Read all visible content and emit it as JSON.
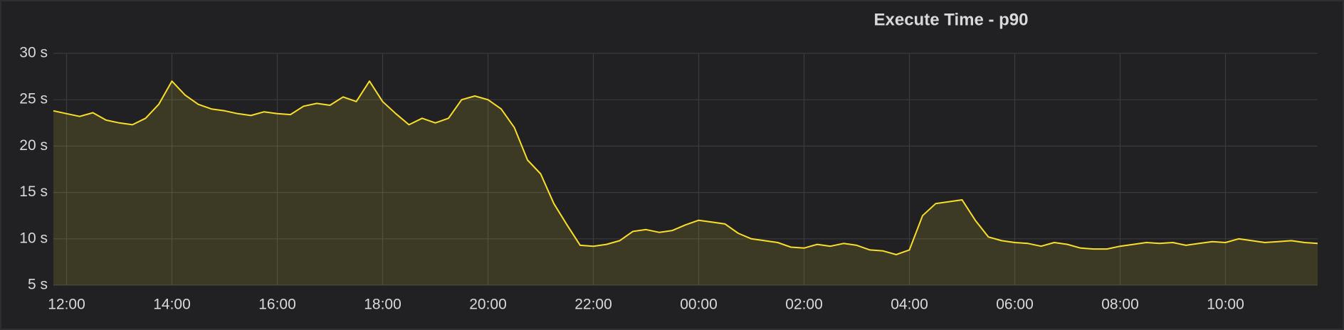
{
  "chart_data": {
    "type": "area",
    "title": "Execute Time - p90",
    "x": [
      "11:45",
      "12:00",
      "12:15",
      "12:30",
      "12:45",
      "13:00",
      "13:15",
      "13:30",
      "13:45",
      "14:00",
      "14:15",
      "14:30",
      "14:45",
      "15:00",
      "15:15",
      "15:30",
      "15:45",
      "16:00",
      "16:15",
      "16:30",
      "16:45",
      "17:00",
      "17:15",
      "17:30",
      "17:45",
      "18:00",
      "18:15",
      "18:30",
      "18:45",
      "19:00",
      "19:15",
      "19:30",
      "19:45",
      "20:00",
      "20:15",
      "20:30",
      "20:45",
      "21:00",
      "21:15",
      "21:30",
      "21:45",
      "22:00",
      "22:15",
      "22:30",
      "22:45",
      "23:00",
      "23:15",
      "23:30",
      "23:45",
      "00:00",
      "00:15",
      "00:30",
      "00:45",
      "01:00",
      "01:15",
      "01:30",
      "01:45",
      "02:00",
      "02:15",
      "02:30",
      "02:45",
      "03:00",
      "03:15",
      "03:30",
      "03:45",
      "04:00",
      "04:15",
      "04:30",
      "04:45",
      "05:00",
      "05:15",
      "05:30",
      "05:45",
      "06:00",
      "06:15",
      "06:30",
      "06:45",
      "07:00",
      "07:15",
      "07:30",
      "07:45",
      "08:00",
      "08:15",
      "08:30",
      "08:45",
      "09:00",
      "09:15",
      "09:30",
      "09:45",
      "10:00",
      "10:15",
      "10:30",
      "10:45",
      "11:00",
      "11:15",
      "11:30",
      "11:45"
    ],
    "values": [
      23.8,
      23.5,
      23.2,
      23.6,
      22.8,
      22.5,
      22.3,
      23.0,
      24.5,
      27.0,
      25.5,
      24.5,
      24.0,
      23.8,
      23.5,
      23.3,
      23.7,
      23.5,
      23.4,
      24.3,
      24.6,
      24.4,
      25.3,
      24.8,
      27.0,
      24.8,
      23.5,
      22.3,
      23.0,
      22.5,
      23.0,
      25.0,
      25.4,
      25.0,
      24.0,
      22.0,
      18.5,
      17.0,
      13.8,
      11.5,
      9.3,
      9.2,
      9.4,
      9.8,
      10.8,
      11.0,
      10.7,
      10.9,
      11.5,
      12.0,
      11.8,
      11.6,
      10.6,
      10.0,
      9.8,
      9.6,
      9.1,
      9.0,
      9.4,
      9.2,
      9.5,
      9.3,
      8.8,
      8.7,
      8.3,
      8.8,
      12.5,
      13.8,
      14.0,
      14.2,
      12.0,
      10.2,
      9.8,
      9.6,
      9.5,
      9.2,
      9.6,
      9.4,
      9.0,
      8.9,
      8.9,
      9.2,
      9.4,
      9.6,
      9.5,
      9.6,
      9.3,
      9.5,
      9.7,
      9.6,
      10.0,
      9.8,
      9.6,
      9.7,
      9.8,
      9.6,
      9.5
    ],
    "color": "#fade2a",
    "xticks": [
      "12:00",
      "14:00",
      "16:00",
      "18:00",
      "20:00",
      "22:00",
      "00:00",
      "02:00",
      "04:00",
      "06:00",
      "08:00",
      "10:00"
    ],
    "ylim": [
      5,
      30
    ],
    "yticks": [
      {
        "value": 5,
        "label": "5 s"
      },
      {
        "value": 10,
        "label": "10 s"
      },
      {
        "value": 15,
        "label": "15 s"
      },
      {
        "value": 20,
        "label": "20 s"
      },
      {
        "value": 25,
        "label": "25 s"
      },
      {
        "value": 30,
        "label": "30 s"
      }
    ],
    "grid": true
  }
}
